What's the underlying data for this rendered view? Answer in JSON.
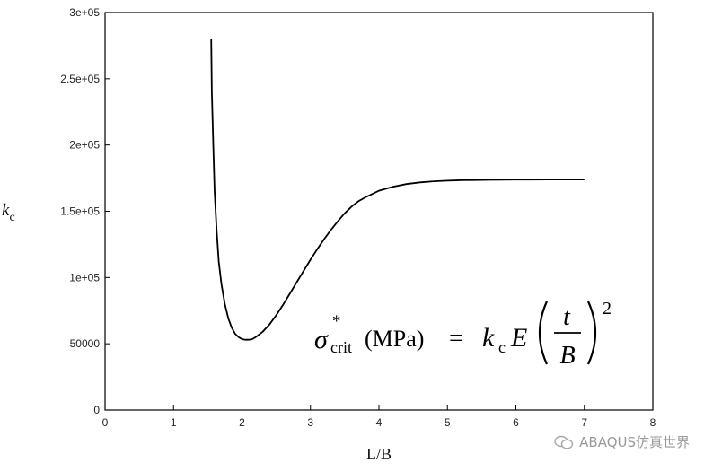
{
  "chart_data": {
    "type": "line",
    "xlabel": "L/B",
    "ylabel": "k",
    "ylabel_sub": "c",
    "xlim": [
      0,
      8
    ],
    "ylim": [
      0,
      300000
    ],
    "x_ticks": [
      0,
      1,
      2,
      3,
      4,
      5,
      6,
      7,
      8
    ],
    "x_tick_labels": [
      "0",
      "1",
      "2",
      "3",
      "4",
      "5",
      "6",
      "7",
      "8"
    ],
    "y_ticks": [
      0,
      50000,
      100000,
      150000,
      200000,
      250000,
      300000
    ],
    "y_tick_labels": [
      "0",
      "50000",
      "1e+05",
      "1.5e+05",
      "2e+05",
      "2.5e+05",
      "3e+05"
    ],
    "grid": false,
    "series": [
      {
        "x": [
          1.55,
          1.56,
          1.58,
          1.6,
          1.63,
          1.66,
          1.7,
          1.75,
          1.8,
          1.85,
          1.9,
          1.95,
          2.0,
          2.05,
          2.1,
          2.15,
          2.2,
          2.3,
          2.4,
          2.5,
          2.6,
          2.7,
          2.8,
          2.9,
          3.0,
          3.1,
          3.2,
          3.3,
          3.4,
          3.5,
          3.6,
          3.7,
          3.8,
          3.9,
          4.0,
          4.2,
          4.4,
          4.6,
          4.8,
          5.0,
          5.2,
          5.4,
          5.6,
          5.8,
          6.0,
          6.2,
          6.5,
          6.8,
          7.0
        ],
        "y": [
          280000,
          240000,
          200000,
          165000,
          135000,
          112000,
          95000,
          80000,
          69000,
          62000,
          57500,
          55000,
          53500,
          53000,
          53000,
          53500,
          55000,
          59000,
          64500,
          71500,
          79500,
          88000,
          96500,
          105000,
          113500,
          121500,
          129000,
          136000,
          142500,
          148500,
          153500,
          157500,
          160500,
          163000,
          165500,
          168500,
          170500,
          171800,
          172600,
          173100,
          173400,
          173600,
          173700,
          173800,
          173900,
          173900,
          174000,
          174000,
          174000
        ]
      }
    ],
    "annotation": {
      "sigma": "σ",
      "star": "*",
      "sub": "crit",
      "unit": "(MPa)",
      "equals": "=",
      "k": "k",
      "k_sub": "c",
      "E": "E",
      "num": "t",
      "den": "B",
      "exponent": "2"
    }
  },
  "watermark": {
    "text": "ABAQUS仿真世界",
    "icon": "wechat-icon"
  }
}
